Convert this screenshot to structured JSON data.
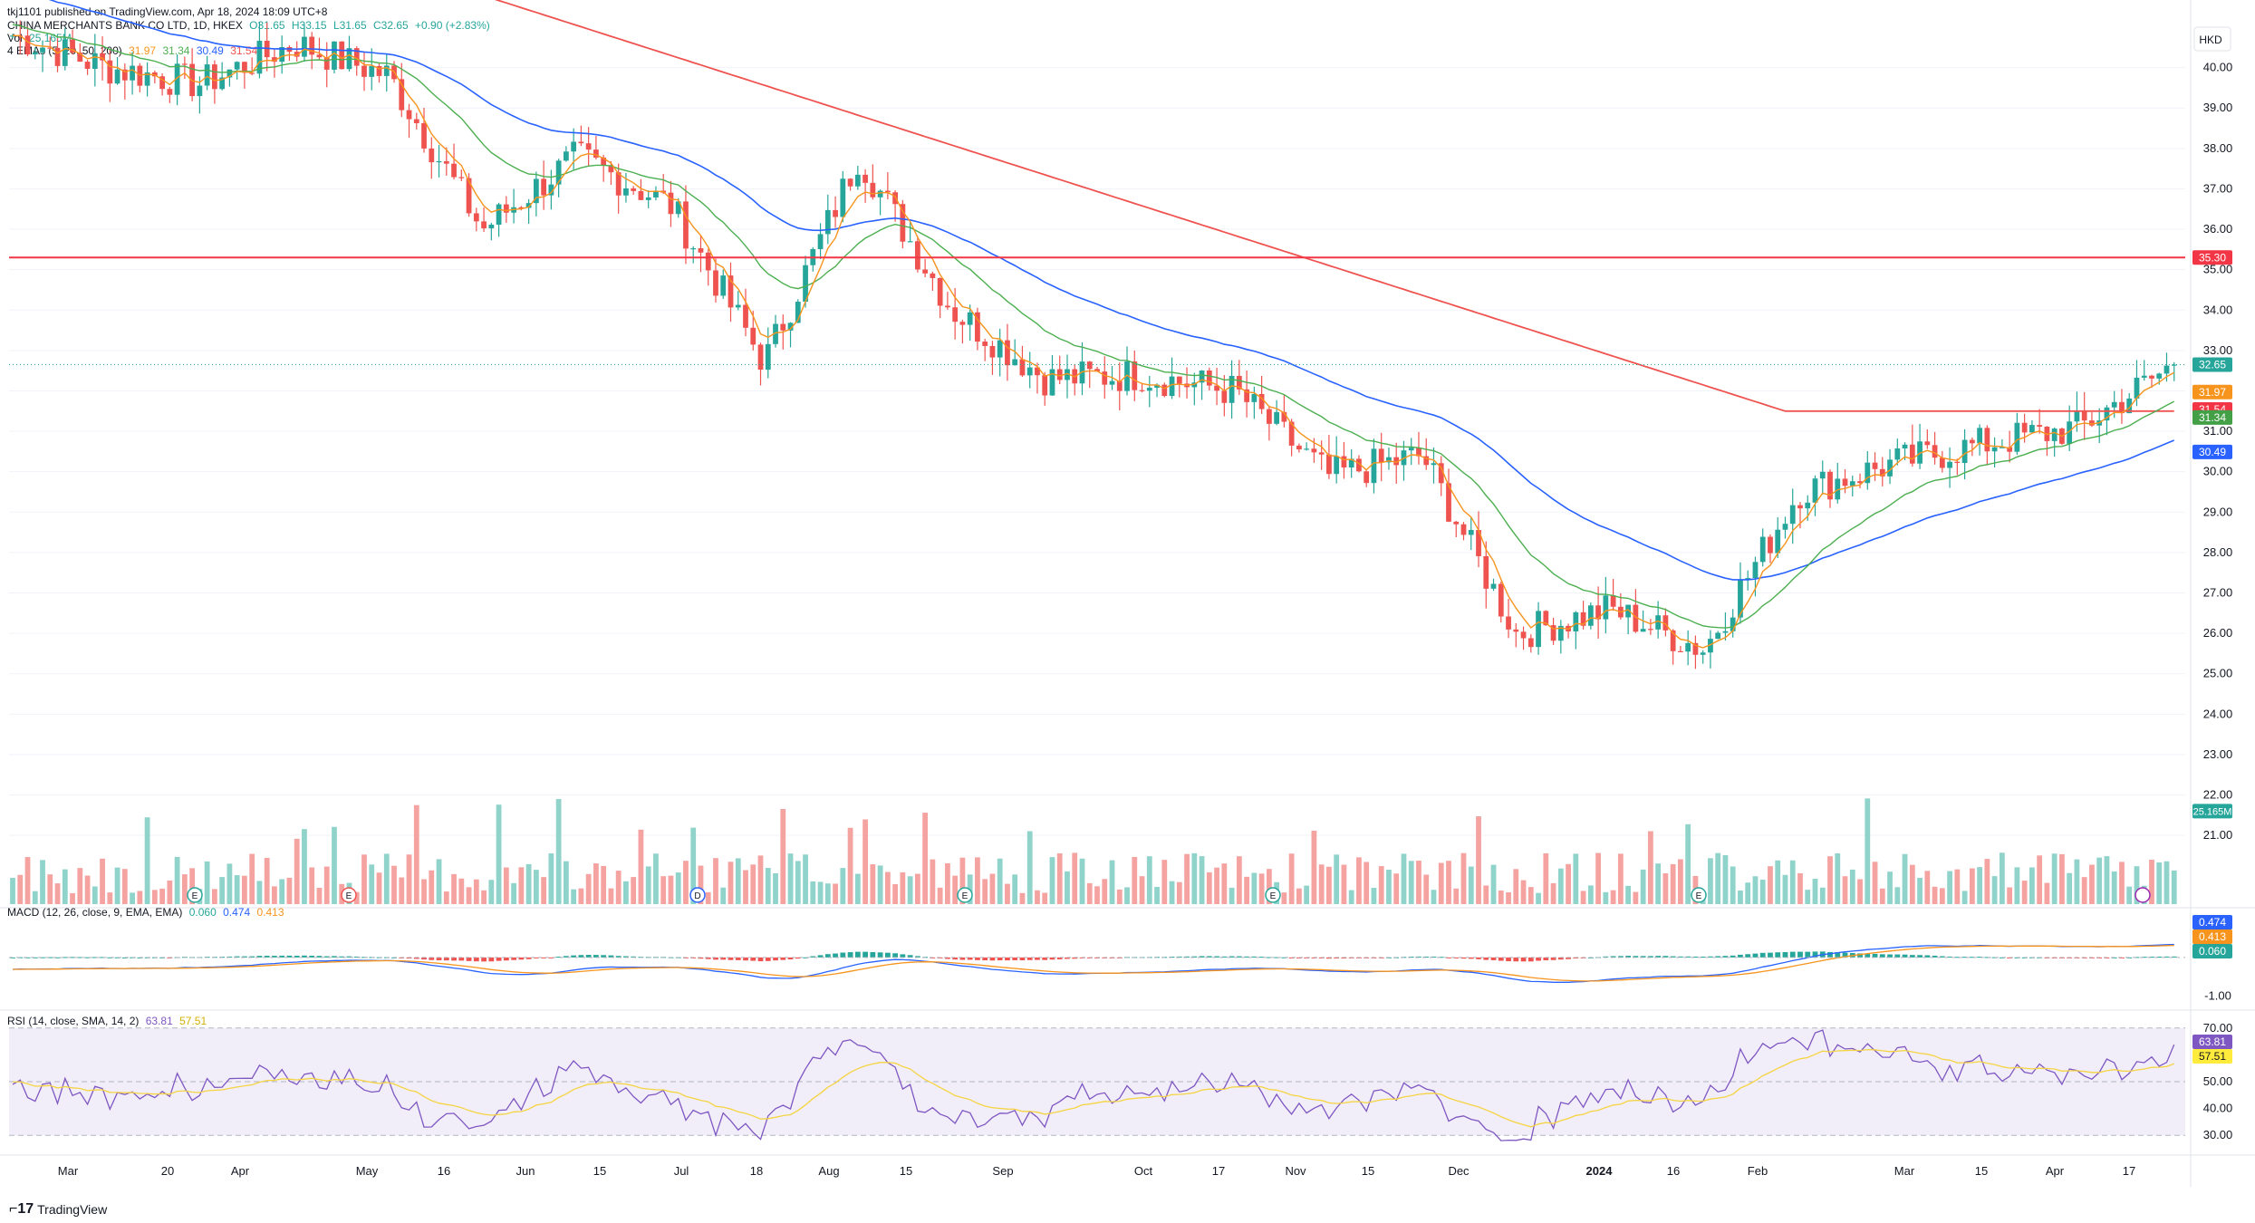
{
  "publisher": "tkj1101 published on TradingView.com, Apr 18, 2024 18:09 UTC+8",
  "header": {
    "symbol": "CHINA MERCHANTS BANK CO LTD, 1D, HKEX",
    "open": "O31.65",
    "high": "H33.15",
    "low": "L31.65",
    "close": "C32.65",
    "change": "+0.90 (+2.83%)",
    "vol_label": "Vol",
    "vol_value": "25.165M",
    "ema_label": "4 EMAs (5, 20, 50, 200)",
    "ema_values": [
      "31.97",
      "31.34",
      "30.49",
      "31.54"
    ]
  },
  "currency": "HKD",
  "price_axis": [
    "40.00",
    "39.00",
    "38.00",
    "37.00",
    "36.00",
    "35.00",
    "34.00",
    "33.00",
    "32.00",
    "31.00",
    "30.00",
    "29.00",
    "28.00",
    "27.00",
    "26.00",
    "25.00",
    "24.00",
    "23.00",
    "22.00",
    "21.00"
  ],
  "price_badges": [
    {
      "label": "35.30",
      "value": 35.3,
      "color": "#f23645"
    },
    {
      "label": "32.65",
      "value": 32.65,
      "color": "#26a69a"
    },
    {
      "label": "31.97",
      "value": 31.97,
      "color": "#f7941d"
    },
    {
      "label": "31.54",
      "value": 31.54,
      "color": "#f23645"
    },
    {
      "label": "31.34",
      "value": 31.34,
      "color": "#43a047"
    },
    {
      "label": "30.49",
      "value": 30.49,
      "color": "#2962ff"
    }
  ],
  "volume_badge": "25.165M",
  "macd": {
    "label": "MACD (12, 26, close, 9, EMA, EMA)",
    "values": [
      "0.060",
      "0.474",
      "0.413"
    ],
    "badges": [
      {
        "label": "0.474",
        "color": "#2962ff"
      },
      {
        "label": "0.413",
        "color": "#f7941d"
      },
      {
        "label": "0.060",
        "color": "#26a69a"
      }
    ],
    "axis": [
      "-1.00"
    ]
  },
  "rsi": {
    "label": "RSI (14, close, SMA, 14, 2)",
    "values": [
      "63.81",
      "57.51"
    ],
    "badges": [
      {
        "label": "63.81",
        "color": "#7e57c2"
      },
      {
        "label": "57.51",
        "color": "#ffeb3b"
      }
    ],
    "axis": [
      "70.00",
      "60.00",
      "50.00",
      "40.00",
      "30.00"
    ]
  },
  "x_axis": [
    "Mar",
    "20",
    "Apr",
    "May",
    "16",
    "Jun",
    "15",
    "Jul",
    "18",
    "Aug",
    "15",
    "Sep",
    "Oct",
    "17",
    "Nov",
    "15",
    "Dec",
    "2024",
    "16",
    "Feb",
    "Mar",
    "15",
    "Apr",
    "17"
  ],
  "event_markers": [
    "E",
    "E",
    "D",
    "E",
    "E",
    "E"
  ],
  "brand": "TradingView",
  "colors": {
    "up": "#26a69a",
    "down": "#ef5350",
    "ema5": "#f7941d",
    "ema20": "#4caf50",
    "ema50": "#2962ff",
    "ema200": "#ef5350",
    "hline": "#f23645"
  },
  "chart_data": {
    "type": "candlestick",
    "horizontal_line": 35.3,
    "last_close": 32.65,
    "anchors": [
      [
        "Mar",
        40.8
      ],
      [
        "20",
        40.0
      ],
      [
        "Apr",
        39.6
      ],
      [
        "May",
        40.6
      ],
      [
        "16",
        39.8
      ],
      [
        "Jun",
        36.0
      ],
      [
        "15",
        37.8
      ],
      [
        "Jul",
        36.6
      ],
      [
        "18",
        32.7
      ],
      [
        "Aug",
        37.8
      ],
      [
        "15",
        34.0
      ],
      [
        "Sep",
        32.3
      ],
      [
        "Oct",
        32.4
      ],
      [
        "17",
        32.0
      ],
      [
        "Nov",
        29.9
      ],
      [
        "15",
        30.4
      ],
      [
        "Dec",
        26.0
      ],
      [
        "2024",
        26.6
      ],
      [
        "16",
        25.6
      ],
      [
        "Feb",
        29.5
      ],
      [
        "Mar",
        30.2
      ],
      [
        "15",
        30.7
      ],
      [
        "Apr",
        31.1
      ],
      [
        "17",
        32.65
      ]
    ],
    "macd_range": [
      -1.2,
      1.1
    ],
    "rsi_range": [
      25,
      75
    ],
    "volume_max_m": 60
  }
}
